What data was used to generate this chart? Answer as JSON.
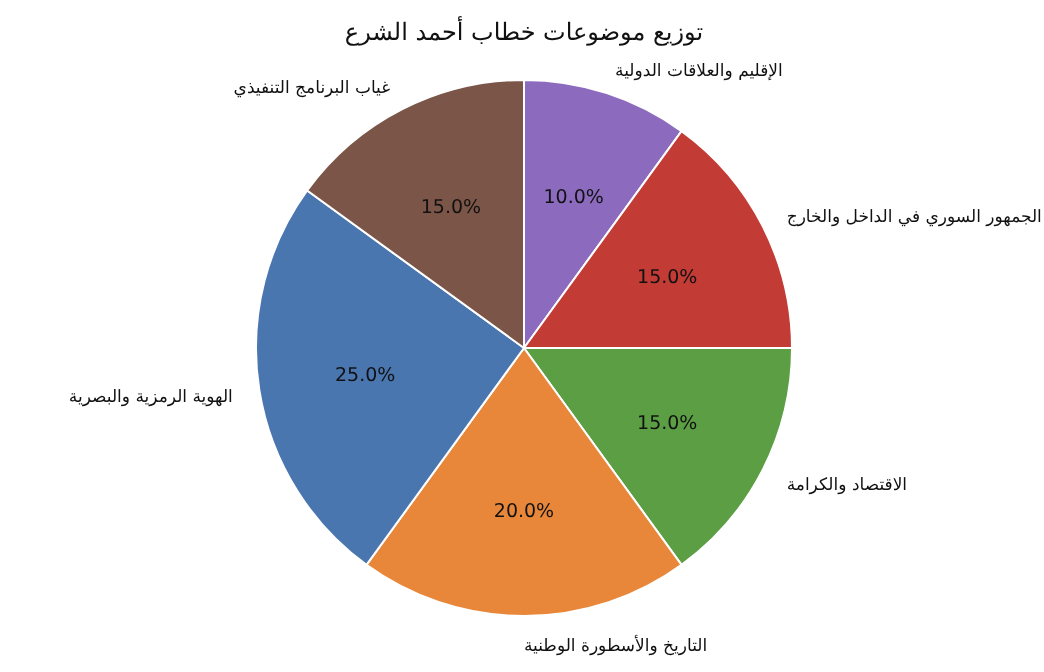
{
  "chart_data": {
    "type": "pie",
    "title": "توزيع موضوعات خطاب أحمد الشرع",
    "categories": [
      "الإقليم والعلاقات الدولية",
      "الجمهور السوري في الداخل والخارج",
      "الاقتصاد والكرامة",
      "التاريخ والأسطورة الوطنية",
      "الهوية الرمزية والبصرية",
      "غياب البرنامج التنفيذي"
    ],
    "values": [
      10,
      15,
      15,
      20,
      25,
      15
    ],
    "colors": [
      "#8c6bbf",
      "#c23b34",
      "#5b9e44",
      "#e8873a",
      "#4a76b0",
      "#7b5547"
    ],
    "value_labels": [
      "10.0%",
      "15.0%",
      "15.0%",
      "20.0%",
      "25.0%",
      "15.0%"
    ]
  }
}
